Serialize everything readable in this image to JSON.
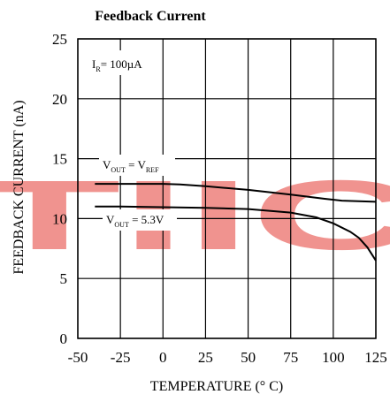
{
  "chart_data": {
    "type": "line",
    "title": "Feedback Current",
    "xlabel": "TEMPERATURE (° C)",
    "ylabel": "FEEDBACK CURRENT (nA)",
    "xlim": [
      -50,
      125
    ],
    "ylim": [
      0,
      25
    ],
    "xticks": [
      -50,
      -25,
      0,
      25,
      50,
      75,
      100,
      125
    ],
    "yticks": [
      0,
      5,
      10,
      15,
      20,
      25
    ],
    "grid": true,
    "series": [
      {
        "name": "V_OUT = V_REF",
        "x": [
          -40,
          -25,
          0,
          10,
          25,
          50,
          75,
          95,
          105,
          115,
          125
        ],
        "y": [
          12.9,
          12.9,
          12.9,
          12.85,
          12.7,
          12.4,
          12.0,
          11.65,
          11.5,
          11.45,
          11.4
        ]
      },
      {
        "name": "V_OUT = 5.3V",
        "x": [
          -40,
          -25,
          0,
          25,
          50,
          75,
          90,
          100,
          110,
          115,
          120,
          125
        ],
        "y": [
          11.0,
          11.0,
          10.95,
          10.9,
          10.8,
          10.5,
          10.1,
          9.6,
          8.9,
          8.4,
          7.6,
          6.5
        ]
      }
    ],
    "annotations": [
      {
        "base": "I",
        "sub": "R",
        "rest": "= 100µA"
      },
      {
        "base": "V",
        "sub": "OUT",
        "mid": " = V",
        "sub2": "REF"
      },
      {
        "base": "V",
        "sub": "OUT",
        "mid": " = 5.3V"
      }
    ],
    "watermark": "TIIC",
    "colors": {
      "line": "#000000",
      "grid": "#000000",
      "watermark": "#f0938f"
    }
  }
}
